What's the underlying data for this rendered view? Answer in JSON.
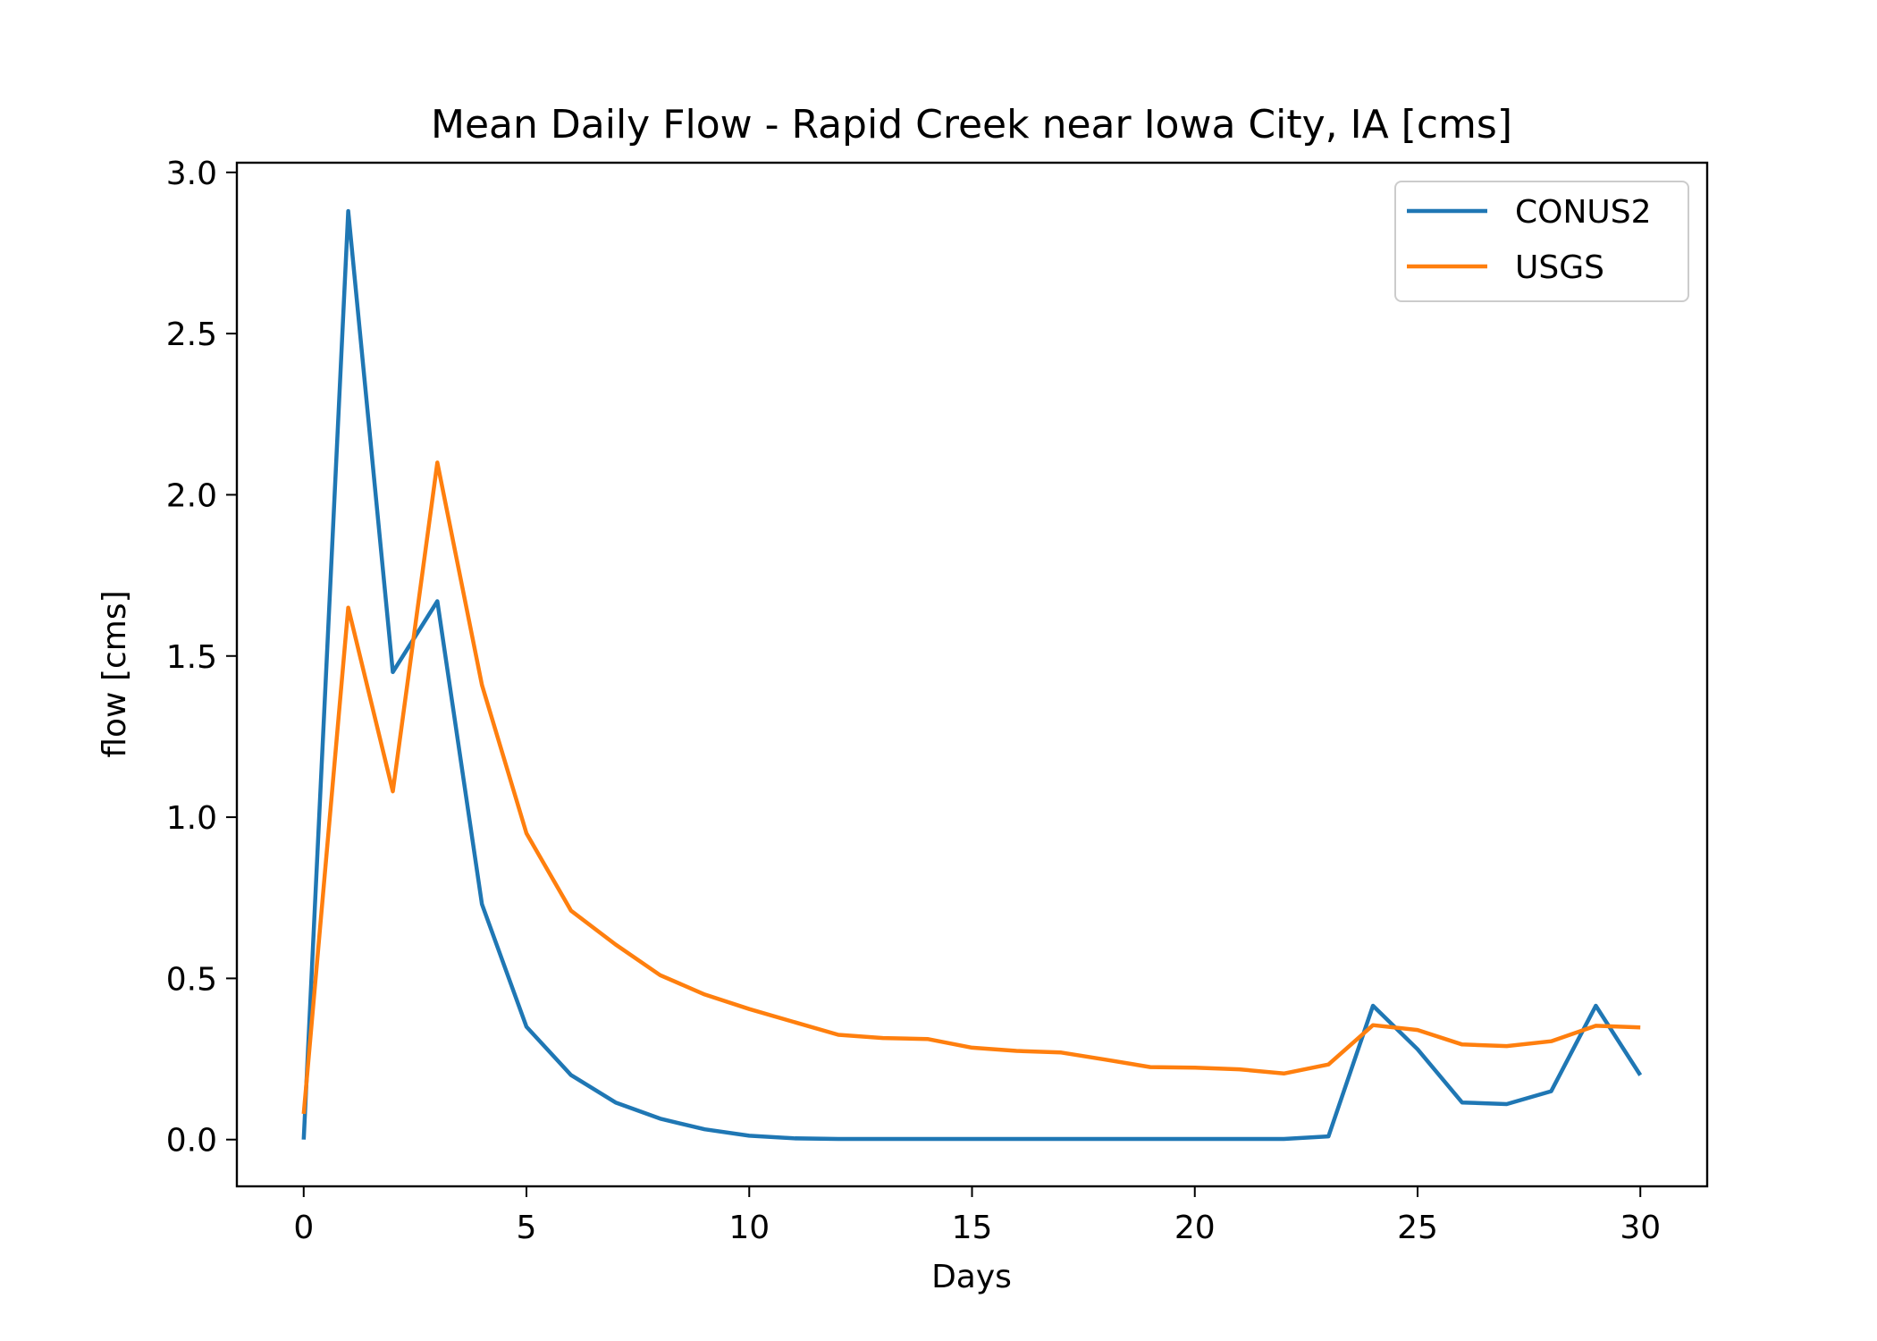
{
  "chart_data": {
    "type": "line",
    "title": "Mean Daily Flow - Rapid Creek near Iowa City, IA [cms]",
    "xlabel": "Days",
    "ylabel": "flow [cms]",
    "xlim": [
      -1.5,
      31.5
    ],
    "ylim": [
      -0.145,
      3.03
    ],
    "xticks": [
      0,
      5,
      10,
      15,
      20,
      25,
      30
    ],
    "yticks": [
      0.0,
      0.5,
      1.0,
      1.5,
      2.0,
      2.5,
      3.0
    ],
    "grid": false,
    "legend_position": "top-right",
    "x": [
      0,
      1,
      2,
      3,
      4,
      5,
      6,
      7,
      8,
      9,
      10,
      11,
      12,
      13,
      14,
      15,
      16,
      17,
      18,
      19,
      20,
      21,
      22,
      23,
      24,
      25,
      26,
      27,
      28,
      29,
      30
    ],
    "series": [
      {
        "name": "CONUS2",
        "color": "#1f77b4",
        "values": [
          0.0,
          2.88,
          1.45,
          1.67,
          0.73,
          0.35,
          0.2,
          0.115,
          0.065,
          0.032,
          0.012,
          0.004,
          0.002,
          0.002,
          0.002,
          0.002,
          0.002,
          0.002,
          0.002,
          0.002,
          0.002,
          0.002,
          0.002,
          0.01,
          0.415,
          0.28,
          0.115,
          0.11,
          0.15,
          0.415,
          0.2
        ]
      },
      {
        "name": "USGS",
        "color": "#ff7f0e",
        "values": [
          0.08,
          1.65,
          1.08,
          2.1,
          1.41,
          0.95,
          0.71,
          0.605,
          0.51,
          0.45,
          0.405,
          0.365,
          0.325,
          0.315,
          0.312,
          0.285,
          0.275,
          0.27,
          0.248,
          0.225,
          0.223,
          0.218,
          0.205,
          0.233,
          0.355,
          0.34,
          0.295,
          0.29,
          0.305,
          0.353,
          0.348
        ]
      }
    ]
  }
}
